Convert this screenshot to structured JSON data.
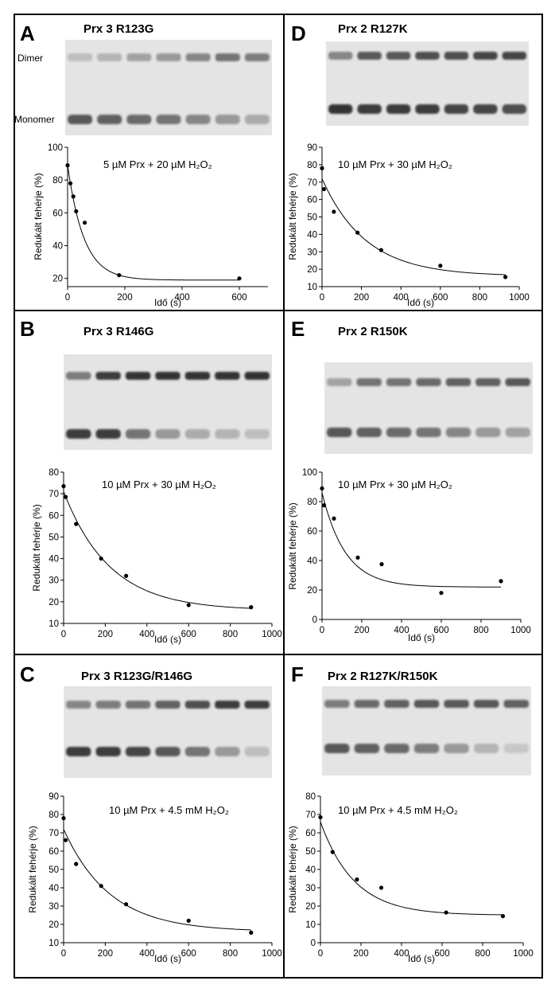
{
  "figure": {
    "gel_labels": {
      "dimer": "Dimer",
      "monomer": "Monomer"
    },
    "colors": {
      "gel_bg": "#e4e4e4",
      "band": "#2a2a2a",
      "line": "#000000",
      "frame": "#000000"
    }
  },
  "chart_data": [
    {
      "letter": "A",
      "title": "Prx 3 R123G",
      "type": "scatter",
      "annotation": "5 µM Prx + 20 µM H₂O₂",
      "xlabel": "Idő (s)",
      "ylabel": "Redukált fehérje (%)",
      "xlim": [
        0,
        700
      ],
      "ylim": [
        15,
        100
      ],
      "xticks": [
        0,
        200,
        400,
        600
      ],
      "yticks": [
        20,
        40,
        60,
        80,
        100
      ],
      "points": {
        "x": [
          0,
          10,
          20,
          30,
          60,
          180,
          600
        ],
        "y": [
          89,
          78,
          70,
          61,
          54,
          22,
          20
        ]
      },
      "fit": {
        "y0": 89,
        "plateau": 19,
        "k": 0.0175
      },
      "gel": {
        "lanes": 7,
        "dimer": [
          0.2,
          0.25,
          0.35,
          0.4,
          0.5,
          0.6,
          0.55
        ],
        "monomer": [
          0.75,
          0.7,
          0.65,
          0.6,
          0.5,
          0.4,
          0.3
        ],
        "labels": true
      }
    },
    {
      "letter": "B",
      "title": "Prx 3 R146G",
      "type": "scatter",
      "annotation": "10 µM Prx + 30 µM H₂O₂",
      "xlabel": "Idő (s)",
      "ylabel": "Redukált fehérje (%)",
      "xlim": [
        0,
        1000
      ],
      "ylim": [
        10,
        80
      ],
      "xticks": [
        0,
        200,
        400,
        600,
        800,
        1000
      ],
      "yticks": [
        10,
        20,
        30,
        40,
        50,
        60,
        70,
        80
      ],
      "points": {
        "x": [
          0,
          10,
          60,
          180,
          300,
          600,
          900
        ],
        "y": [
          73.5,
          68.5,
          56,
          40,
          32,
          18.5,
          17.5
        ]
      },
      "fit": {
        "y0": 71,
        "plateau": 16,
        "k": 0.0045
      },
      "gel": {
        "lanes": 7,
        "dimer": [
          0.55,
          0.9,
          0.95,
          0.95,
          0.95,
          0.95,
          0.95
        ],
        "monomer": [
          0.9,
          0.9,
          0.6,
          0.4,
          0.3,
          0.25,
          0.2
        ],
        "labels": false
      }
    },
    {
      "letter": "C",
      "title": "Prx 3 R123G/R146G",
      "type": "scatter",
      "annotation": "10 µM Prx + 4.5 mM H₂O₂",
      "xlabel": "Idő (s)",
      "ylabel": "Redukált fehérje (%)",
      "xlim": [
        0,
        1000
      ],
      "ylim": [
        10,
        90
      ],
      "xticks": [
        0,
        200,
        400,
        600,
        800,
        1000
      ],
      "yticks": [
        10,
        20,
        30,
        40,
        50,
        60,
        70,
        80,
        90
      ],
      "points": {
        "x": [
          0,
          10,
          60,
          180,
          300,
          600,
          900
        ],
        "y": [
          78,
          66,
          53,
          41,
          31,
          22,
          15.5
        ]
      },
      "fit": {
        "y0": 72,
        "plateau": 16,
        "k": 0.0045
      },
      "gel": {
        "lanes": 7,
        "dimer": [
          0.5,
          0.55,
          0.6,
          0.7,
          0.8,
          0.9,
          0.9
        ],
        "monomer": [
          0.9,
          0.9,
          0.85,
          0.75,
          0.6,
          0.4,
          0.2
        ],
        "labels": false
      }
    },
    {
      "letter": "D",
      "title": "Prx 2 R127K",
      "type": "scatter",
      "annotation": "10 µM Prx + 30 µM H₂O₂",
      "xlabel": "Idő (s)",
      "ylabel": "Redukált fehérje (%)",
      "xlim": [
        0,
        1000
      ],
      "ylim": [
        10,
        90
      ],
      "xticks": [
        0,
        200,
        400,
        600,
        800,
        1000
      ],
      "yticks": [
        10,
        20,
        30,
        40,
        50,
        60,
        70,
        80,
        90
      ],
      "points": {
        "x": [
          0,
          10,
          60,
          180,
          300,
          600,
          930
        ],
        "y": [
          78,
          66,
          53,
          41,
          31,
          22,
          15.5
        ]
      },
      "fit": {
        "y0": 72,
        "plateau": 16,
        "k": 0.0045
      },
      "gel": {
        "lanes": 7,
        "dimer": [
          0.5,
          0.75,
          0.75,
          0.8,
          0.8,
          0.85,
          0.85
        ],
        "monomer": [
          0.95,
          0.9,
          0.9,
          0.9,
          0.85,
          0.85,
          0.8
        ],
        "labels": false
      }
    },
    {
      "letter": "E",
      "title": "Prx 2 R150K",
      "type": "scatter",
      "annotation": "10 µM Prx + 30 µM H₂O₂",
      "xlabel": "Idő (s)",
      "ylabel": "Redukált fehérje (%)",
      "xlim": [
        0,
        1000
      ],
      "ylim": [
        0,
        100
      ],
      "xticks": [
        0,
        200,
        400,
        600,
        800,
        1000
      ],
      "yticks": [
        0,
        20,
        40,
        60,
        80,
        100
      ],
      "points": {
        "x": [
          0,
          10,
          60,
          180,
          300,
          600,
          900
        ],
        "y": [
          89,
          77.5,
          68.5,
          42,
          37.5,
          18,
          26
        ]
      },
      "fit": {
        "y0": 86,
        "plateau": 22,
        "k": 0.0085
      },
      "gel": {
        "lanes": 7,
        "dimer": [
          0.35,
          0.6,
          0.6,
          0.65,
          0.7,
          0.7,
          0.75
        ],
        "monomer": [
          0.75,
          0.7,
          0.65,
          0.6,
          0.5,
          0.4,
          0.35
        ],
        "labels": false
      }
    },
    {
      "letter": "F",
      "title": "Prx 2 R127K/R150K",
      "type": "scatter",
      "annotation": "10 µM Prx + 4.5 mM H₂O₂",
      "xlabel": "Idő (s)",
      "ylabel": "Redukált fehérje (%)",
      "xlim": [
        0,
        1000
      ],
      "ylim": [
        0,
        80
      ],
      "xticks": [
        0,
        200,
        400,
        600,
        800,
        1000
      ],
      "yticks": [
        0,
        10,
        20,
        30,
        40,
        50,
        60,
        70,
        80
      ],
      "points": {
        "x": [
          0,
          60,
          180,
          300,
          620,
          900
        ],
        "y": [
          68.5,
          49.5,
          34.5,
          30,
          16.5,
          14.5
        ]
      },
      "fit": {
        "y0": 66,
        "plateau": 15,
        "k": 0.006
      },
      "gel": {
        "lanes": 7,
        "dimer": [
          0.55,
          0.65,
          0.7,
          0.75,
          0.75,
          0.75,
          0.7
        ],
        "monomer": [
          0.75,
          0.7,
          0.65,
          0.55,
          0.4,
          0.25,
          0.15
        ],
        "labels": false
      }
    }
  ]
}
